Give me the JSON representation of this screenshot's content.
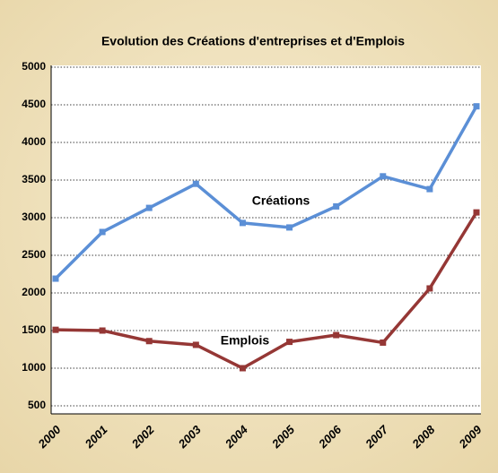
{
  "chart_data": {
    "type": "line",
    "title": "Evolution des Créations d'entreprises et d'Emplois",
    "categories": [
      "2000",
      "2001",
      "2002",
      "2003",
      "2004",
      "2005",
      "2006",
      "2007",
      "2008",
      "2009"
    ],
    "series": [
      {
        "name": "Créations",
        "color": "#5b8fd6",
        "values": [
          2190,
          2810,
          3130,
          3450,
          2930,
          2870,
          3150,
          3550,
          3380,
          4480
        ]
      },
      {
        "name": "Emplois",
        "color": "#953735",
        "values": [
          1510,
          1500,
          1360,
          1310,
          1000,
          1350,
          1440,
          1340,
          2060,
          3070
        ]
      }
    ],
    "ylim": [
      500,
      5000
    ],
    "yticks": [
      500,
      1000,
      1500,
      2000,
      2500,
      3000,
      3500,
      4000,
      4500,
      5000
    ],
    "grid": true
  }
}
